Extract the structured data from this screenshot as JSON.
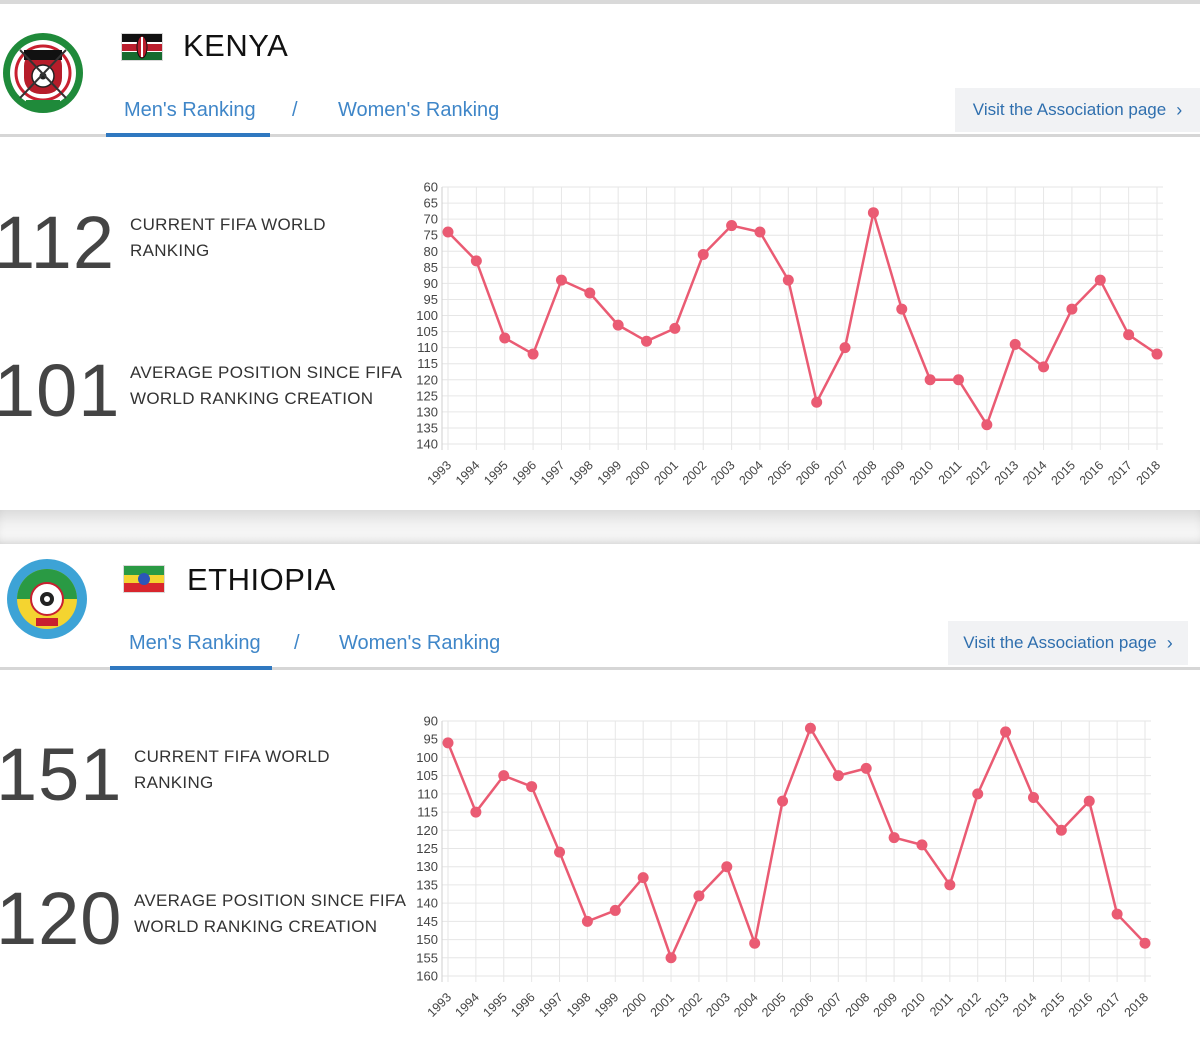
{
  "colors": {
    "accent": "#2f78c0",
    "link": "#3f86c8",
    "series": "#ea5b73"
  },
  "kenya": {
    "country": "KENYA",
    "tabs": {
      "mens": "Men's Ranking",
      "slash": "/",
      "womens": "Women's Ranking"
    },
    "visit": {
      "label": "Visit the Association page",
      "chevron": "›"
    },
    "current_rank": "112",
    "current_label_1": "CURRENT FIFA WORLD",
    "current_label_2": "RANKING",
    "average_rank": "101",
    "average_label_1": "AVERAGE POSITION SINCE FIFA",
    "average_label_2": "WORLD RANKING CREATION"
  },
  "ethiopia": {
    "country": "ETHIOPIA",
    "tabs": {
      "mens": "Men's Ranking",
      "slash": "/",
      "womens": "Women's Ranking"
    },
    "visit": {
      "label": "Visit the Association page",
      "chevron": "›"
    },
    "current_rank": "151",
    "current_label_1": "CURRENT FIFA WORLD",
    "current_label_2": "RANKING",
    "average_rank": "120",
    "average_label_1": "AVERAGE POSITION SINCE FIFA",
    "average_label_2": "WORLD RANKING CREATION"
  },
  "chart_data": [
    {
      "type": "line",
      "title": "",
      "xlabel": "",
      "ylabel": "",
      "x": [
        "1993",
        "1994",
        "1995",
        "1996",
        "1997",
        "1998",
        "1999",
        "2000",
        "2001",
        "2002",
        "2003",
        "2004",
        "2005",
        "2006",
        "2007",
        "2008",
        "2009",
        "2010",
        "2011",
        "2012",
        "2013",
        "2014",
        "2015",
        "2016",
        "2017",
        "2018"
      ],
      "values": [
        74,
        83,
        107,
        112,
        89,
        93,
        103,
        108,
        104,
        81,
        72,
        74,
        89,
        127,
        110,
        68,
        98,
        120,
        120,
        134,
        109,
        116,
        98,
        89,
        106,
        112
      ],
      "ylim": [
        60,
        140
      ],
      "y_ticks": [
        60,
        65,
        70,
        75,
        80,
        85,
        90,
        95,
        100,
        105,
        110,
        115,
        120,
        125,
        130,
        135,
        140
      ],
      "y_reversed": true,
      "grid": true
    },
    {
      "type": "line",
      "title": "",
      "xlabel": "",
      "ylabel": "",
      "x": [
        "1993",
        "1994",
        "1995",
        "1996",
        "1997",
        "1998",
        "1999",
        "2000",
        "2001",
        "2002",
        "2003",
        "2004",
        "2005",
        "2006",
        "2007",
        "2008",
        "2009",
        "2010",
        "2011",
        "2012",
        "2013",
        "2014",
        "2015",
        "2016",
        "2017",
        "2018"
      ],
      "values": [
        96,
        115,
        105,
        108,
        126,
        145,
        142,
        133,
        155,
        138,
        130,
        151,
        112,
        92,
        105,
        103,
        122,
        124,
        135,
        110,
        93,
        111,
        120,
        112,
        143,
        151
      ],
      "ylim": [
        90,
        160
      ],
      "y_ticks": [
        90,
        95,
        100,
        105,
        110,
        115,
        120,
        125,
        130,
        135,
        140,
        145,
        150,
        155,
        160
      ],
      "y_reversed": true,
      "grid": true
    }
  ]
}
